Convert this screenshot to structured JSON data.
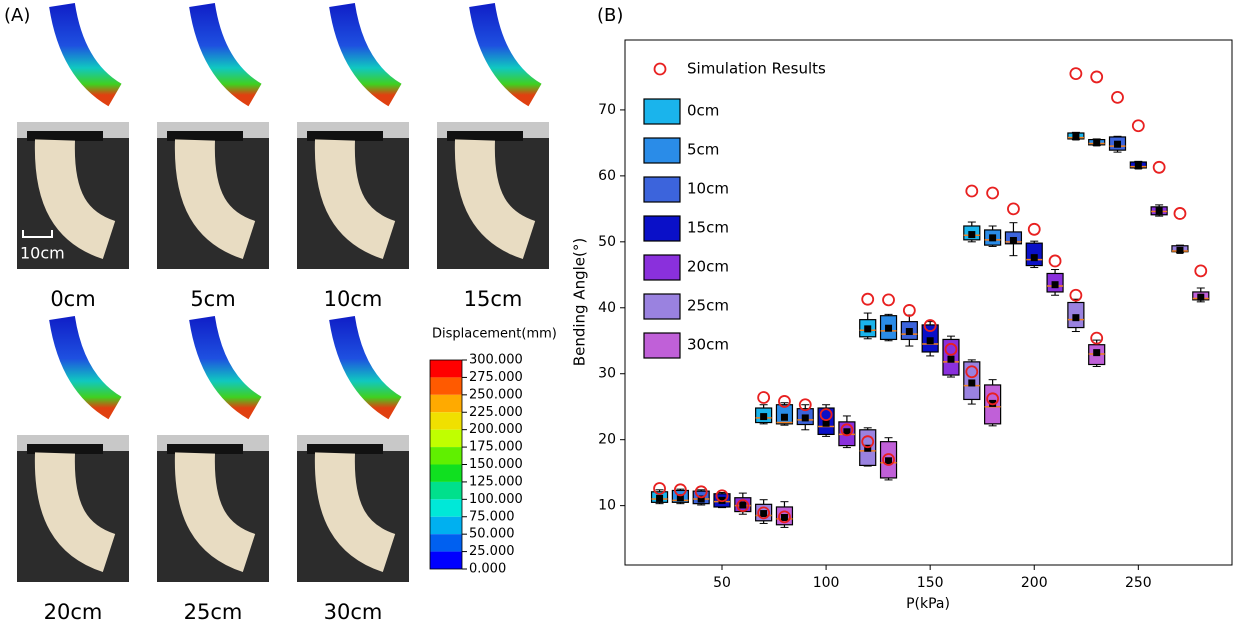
{
  "panel_a": {
    "label": "(A)",
    "scale_bar": "10cm",
    "captions": [
      "0cm",
      "5cm",
      "10cm",
      "15cm",
      "20cm",
      "25cm",
      "30cm"
    ],
    "colorbar": {
      "title": "Displacement(mm)",
      "colors": [
        "#ff0000",
        "#ff5a00",
        "#ffaa00",
        "#f0e000",
        "#c0ff00",
        "#60f000",
        "#10e020",
        "#00e08c",
        "#00e8d8",
        "#00b0f0",
        "#0060f0",
        "#0000ff"
      ],
      "ticks": [
        {
          "value": 300,
          "label": "300.000"
        },
        {
          "value": 275,
          "label": "275.000"
        },
        {
          "value": 250,
          "label": "250.000"
        },
        {
          "value": 225,
          "label": "225.000"
        },
        {
          "value": 200,
          "label": "200.000"
        },
        {
          "value": 175,
          "label": "175.000"
        },
        {
          "value": 150,
          "label": "150.000"
        },
        {
          "value": 125,
          "label": "125.000"
        },
        {
          "value": 100,
          "label": "100.000"
        },
        {
          "value": 75,
          "label": "75.000"
        },
        {
          "value": 50,
          "label": "50.000"
        },
        {
          "value": 25,
          "label": "25.000"
        },
        {
          "value": 0,
          "label": "0.000"
        }
      ]
    }
  },
  "chart_data": {
    "type": "box",
    "panel_label": "(B)",
    "x_label": "P(kPa)",
    "y_label": "Bending Angle(°)",
    "xlim": [
      3.4,
      295
    ],
    "ylim": [
      1,
      80.6
    ],
    "xticks": [
      50,
      100,
      150,
      200,
      250
    ],
    "yticks": [
      10,
      20,
      30,
      40,
      50,
      60,
      70
    ],
    "legend": "upper left",
    "simulation": {
      "name": "Simulation Results",
      "color": "#e82020",
      "x": [
        20,
        70,
        120,
        170,
        220,
        30,
        80,
        130,
        180,
        230,
        40,
        90,
        140,
        190,
        240,
        50,
        100,
        150,
        200,
        250,
        60,
        110,
        160,
        210,
        260,
        70,
        120,
        170,
        220,
        270,
        80,
        130,
        180,
        230,
        280
      ],
      "values": [
        12.6,
        26.4,
        41.3,
        57.7,
        75.5,
        12.4,
        25.8,
        41.2,
        57.4,
        75.0,
        12.1,
        25.3,
        39.6,
        55.0,
        71.9,
        11.5,
        23.8,
        37.3,
        51.9,
        67.6,
        10.0,
        21.5,
        33.7,
        47.1,
        61.3,
        8.9,
        19.7,
        30.3,
        41.9,
        54.3,
        8.3,
        17.0,
        26.2,
        35.4,
        45.6
      ]
    },
    "series": [
      {
        "name": "0cm",
        "color": "#1ab4ec",
        "boxes": [
          {
            "x": 20,
            "low": 10.3,
            "q1": 10.5,
            "median": 11.0,
            "q3": 12.1,
            "high": 12.4,
            "mean": 11.1
          },
          {
            "x": 70,
            "low": 22.4,
            "q1": 22.6,
            "median": 23.3,
            "q3": 24.8,
            "high": 25.3,
            "mean": 23.5
          },
          {
            "x": 120,
            "low": 35.3,
            "q1": 35.6,
            "median": 36.6,
            "q3": 38.2,
            "high": 39.2,
            "mean": 36.8
          },
          {
            "x": 170,
            "low": 50.0,
            "q1": 50.3,
            "median": 51.0,
            "q3": 52.4,
            "high": 53.0,
            "mean": 51.1
          },
          {
            "x": 220,
            "low": 65.5,
            "q1": 65.6,
            "median": 65.8,
            "q3": 66.5,
            "high": 66.6,
            "mean": 65.9
          }
        ]
      },
      {
        "name": "5cm",
        "color": "#2a8ce8",
        "boxes": [
          {
            "x": 30,
            "low": 10.3,
            "q1": 10.5,
            "median": 10.8,
            "q3": 12.3,
            "high": 12.5,
            "mean": 11.2
          },
          {
            "x": 80,
            "low": 22.2,
            "q1": 22.4,
            "median": 22.6,
            "q3": 25.3,
            "high": 25.6,
            "mean": 23.4
          },
          {
            "x": 130,
            "low": 35.0,
            "q1": 35.2,
            "median": 36.5,
            "q3": 38.8,
            "high": 39.0,
            "mean": 36.9
          },
          {
            "x": 180,
            "low": 49.3,
            "q1": 49.5,
            "median": 50.3,
            "q3": 51.8,
            "high": 52.4,
            "mean": 50.6
          },
          {
            "x": 230,
            "low": 64.6,
            "q1": 64.7,
            "median": 64.9,
            "q3": 65.5,
            "high": 65.6,
            "mean": 65.0
          }
        ]
      },
      {
        "name": "10cm",
        "color": "#3c64dc",
        "boxes": [
          {
            "x": 40,
            "low": 10.1,
            "q1": 10.3,
            "median": 11.0,
            "q3": 12.2,
            "high": 12.4,
            "mean": 11.0
          },
          {
            "x": 90,
            "low": 21.5,
            "q1": 22.3,
            "median": 23.0,
            "q3": 24.7,
            "high": 25.3,
            "mean": 23.3
          },
          {
            "x": 140,
            "low": 34.2,
            "q1": 35.2,
            "median": 36.0,
            "q3": 37.9,
            "high": 38.9,
            "mean": 36.4
          },
          {
            "x": 190,
            "low": 47.9,
            "q1": 49.7,
            "median": 50.0,
            "q3": 51.5,
            "high": 52.9,
            "mean": 50.2
          },
          {
            "x": 240,
            "low": 63.6,
            "q1": 63.9,
            "median": 64.5,
            "q3": 65.9,
            "high": 66.0,
            "mean": 64.8
          }
        ]
      },
      {
        "name": "15cm",
        "color": "#0a10c8",
        "boxes": [
          {
            "x": 50,
            "low": 9.7,
            "q1": 9.8,
            "median": 10.6,
            "q3": 11.8,
            "high": 12.0,
            "mean": 10.8
          },
          {
            "x": 100,
            "low": 20.5,
            "q1": 20.8,
            "median": 22.0,
            "q3": 24.8,
            "high": 25.3,
            "mean": 22.5
          },
          {
            "x": 150,
            "low": 32.7,
            "q1": 33.3,
            "median": 34.5,
            "q3": 37.4,
            "high": 37.9,
            "mean": 35.0
          },
          {
            "x": 200,
            "low": 46.1,
            "q1": 46.4,
            "median": 47.3,
            "q3": 49.8,
            "high": 50.1,
            "mean": 47.6
          },
          {
            "x": 250,
            "low": 61.1,
            "q1": 61.2,
            "median": 61.4,
            "q3": 62.1,
            "high": 62.2,
            "mean": 61.5
          }
        ]
      },
      {
        "name": "20cm",
        "color": "#8a30dc",
        "boxes": [
          {
            "x": 60,
            "low": 8.7,
            "q1": 9.1,
            "median": 10.0,
            "q3": 11.2,
            "high": 11.9,
            "mean": 10.1
          },
          {
            "x": 110,
            "low": 18.8,
            "q1": 19.1,
            "median": 20.8,
            "q3": 22.7,
            "high": 23.6,
            "mean": 21.2
          },
          {
            "x": 160,
            "low": 29.5,
            "q1": 29.8,
            "median": 31.8,
            "q3": 35.2,
            "high": 35.7,
            "mean": 32.2
          },
          {
            "x": 210,
            "low": 41.9,
            "q1": 42.4,
            "median": 43.3,
            "q3": 45.2,
            "high": 45.8,
            "mean": 43.5
          },
          {
            "x": 260,
            "low": 53.9,
            "q1": 54.1,
            "median": 54.6,
            "q3": 55.3,
            "high": 55.6,
            "mean": 54.7
          }
        ]
      },
      {
        "name": "25cm",
        "color": "#9a82e0",
        "boxes": [
          {
            "x": 70,
            "low": 7.3,
            "q1": 7.7,
            "median": 8.5,
            "q3": 10.2,
            "high": 10.9,
            "mean": 8.8
          },
          {
            "x": 120,
            "low": 16.0,
            "q1": 16.1,
            "median": 18.3,
            "q3": 21.5,
            "high": 21.8,
            "mean": 18.7
          },
          {
            "x": 170,
            "low": 25.4,
            "q1": 26.1,
            "median": 28.2,
            "q3": 31.8,
            "high": 32.1,
            "mean": 28.6
          },
          {
            "x": 220,
            "low": 36.4,
            "q1": 37.0,
            "median": 38.2,
            "q3": 40.8,
            "high": 41.3,
            "mean": 38.5
          },
          {
            "x": 270,
            "low": 48.4,
            "q1": 48.5,
            "median": 48.6,
            "q3": 49.4,
            "high": 49.5,
            "mean": 48.7
          }
        ]
      },
      {
        "name": "30cm",
        "color": "#c060d8",
        "boxes": [
          {
            "x": 80,
            "low": 6.7,
            "q1": 7.1,
            "median": 8.0,
            "q3": 9.8,
            "high": 10.6,
            "mean": 8.2
          },
          {
            "x": 130,
            "low": 13.9,
            "q1": 14.2,
            "median": 16.5,
            "q3": 19.7,
            "high": 20.3,
            "mean": 16.8
          },
          {
            "x": 180,
            "low": 22.1,
            "q1": 22.4,
            "median": 25.0,
            "q3": 28.3,
            "high": 29.1,
            "mean": 25.5
          },
          {
            "x": 230,
            "low": 31.1,
            "q1": 31.4,
            "median": 33.0,
            "q3": 34.4,
            "high": 35.1,
            "mean": 33.2
          },
          {
            "x": 280,
            "low": 40.9,
            "q1": 41.2,
            "median": 41.4,
            "q3": 42.4,
            "high": 43.0,
            "mean": 41.6
          }
        ]
      }
    ]
  }
}
